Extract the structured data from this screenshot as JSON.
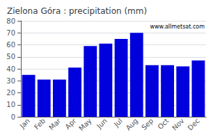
{
  "chart_data": {
    "type": "bar",
    "title": "Zielona Góra : precipitation (mm)",
    "categories": [
      "Jan",
      "Feb",
      "Mar",
      "Apr",
      "May",
      "Jun",
      "Jul",
      "Aug",
      "Sep",
      "Oct",
      "Nov",
      "Dec"
    ],
    "values": [
      35,
      31,
      31,
      41,
      59,
      61,
      65,
      70,
      43,
      43,
      42,
      47
    ],
    "color": "#0000dd",
    "ylim": [
      0,
      80
    ],
    "yticks": [
      0,
      10,
      20,
      30,
      40,
      50,
      60,
      70,
      80
    ],
    "grid": true,
    "annotations": [
      "www.allmetsat.com"
    ]
  }
}
